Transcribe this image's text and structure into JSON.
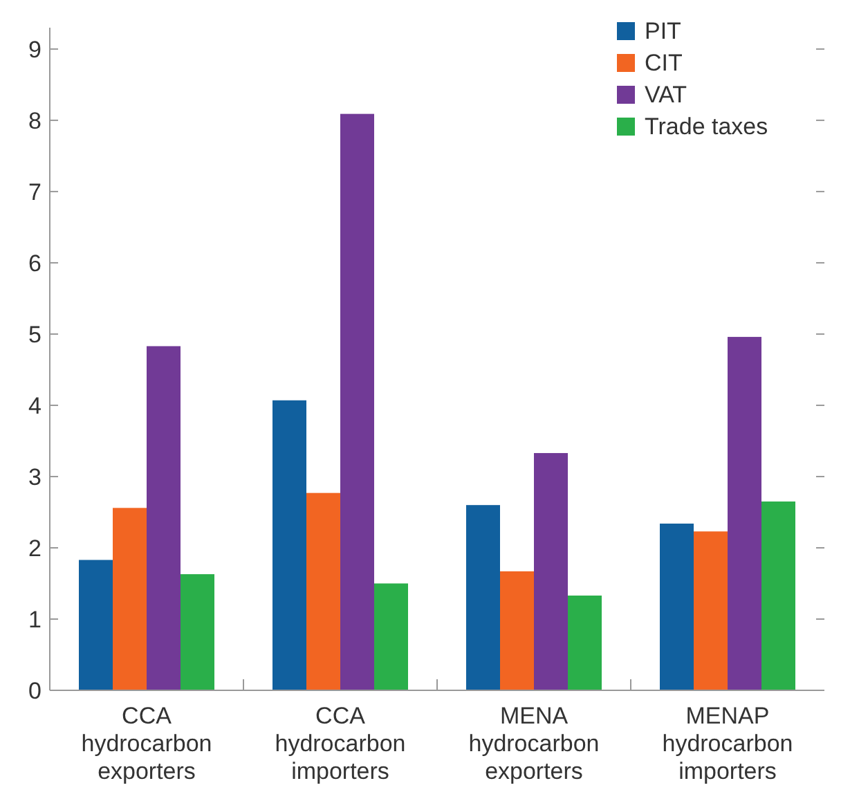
{
  "chart_data": {
    "type": "bar",
    "categories": [
      "CCA hydrocarbon exporters",
      "CCA hydrocarbon importers",
      "MENA hydrocarbon exporters",
      "MENAP hydrocarbon importers"
    ],
    "series": [
      {
        "name": "PIT",
        "color": "#11609e",
        "values": [
          1.83,
          4.07,
          2.6,
          2.34
        ]
      },
      {
        "name": "CIT",
        "color": "#f26522",
        "values": [
          2.56,
          2.77,
          1.67,
          2.23
        ]
      },
      {
        "name": "VAT",
        "color": "#713a96",
        "values": [
          4.83,
          8.09,
          3.33,
          4.96
        ]
      },
      {
        "name": "Trade taxes",
        "color": "#2aaf4a",
        "values": [
          1.63,
          1.5,
          1.33,
          2.65
        ]
      }
    ],
    "ylim": [
      0,
      9.3
    ],
    "yticks": [
      0,
      1,
      2,
      3,
      4,
      5,
      6,
      7,
      8,
      9
    ],
    "grid": false,
    "legend": "top right"
  }
}
